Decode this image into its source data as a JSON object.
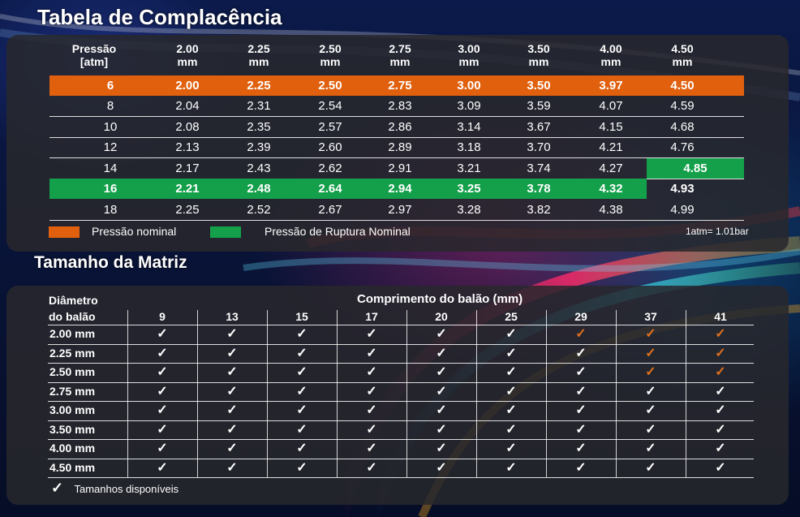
{
  "compliance": {
    "title": "Tabela de Complacência",
    "pressure_header": [
      "Pressão",
      "[atm]"
    ],
    "diameters": [
      {
        "value": "2.00",
        "unit": "mm"
      },
      {
        "value": "2.25",
        "unit": "mm"
      },
      {
        "value": "2.50",
        "unit": "mm"
      },
      {
        "value": "2.75",
        "unit": "mm"
      },
      {
        "value": "3.00",
        "unit": "mm"
      },
      {
        "value": "3.50",
        "unit": "mm"
      },
      {
        "value": "4.00",
        "unit": "mm"
      },
      {
        "value": "4.50",
        "unit": "mm"
      }
    ],
    "rows": [
      {
        "pressure": "6",
        "values": [
          "2.00",
          "2.25",
          "2.50",
          "2.75",
          "3.00",
          "3.50",
          "3.97",
          "4.50"
        ],
        "highlight": "orange",
        "green_cells": []
      },
      {
        "pressure": "8",
        "values": [
          "2.04",
          "2.31",
          "2.54",
          "2.83",
          "3.09",
          "3.59",
          "4.07",
          "4.59"
        ],
        "highlight": "",
        "green_cells": []
      },
      {
        "pressure": "10",
        "values": [
          "2.08",
          "2.35",
          "2.57",
          "2.86",
          "3.14",
          "3.67",
          "4.15",
          "4.68"
        ],
        "highlight": "",
        "green_cells": []
      },
      {
        "pressure": "12",
        "values": [
          "2.13",
          "2.39",
          "2.60",
          "2.89",
          "3.18",
          "3.70",
          "4.21",
          "4.76"
        ],
        "highlight": "",
        "green_cells": []
      },
      {
        "pressure": "14",
        "values": [
          "2.17",
          "2.43",
          "2.62",
          "2.91",
          "3.21",
          "3.74",
          "4.27",
          "4.85"
        ],
        "highlight": "",
        "green_cells": [
          8
        ]
      },
      {
        "pressure": "16",
        "values": [
          "2.21",
          "2.48",
          "2.64",
          "2.94",
          "3.25",
          "3.78",
          "4.32",
          "4.93"
        ],
        "highlight": "green",
        "green_cells": []
      },
      {
        "pressure": "18",
        "values": [
          "2.25",
          "2.52",
          "2.67",
          "2.97",
          "3.28",
          "3.82",
          "4.38",
          "4.99"
        ],
        "highlight": "",
        "green_cells": []
      }
    ],
    "legend": {
      "nominal": "Pressão nominal",
      "rupture": "Pressão de Ruptura Nominal",
      "note": "1atm= 1.01bar"
    },
    "colors": {
      "orange": "#e0600e",
      "green": "#14a04a"
    }
  },
  "matrix": {
    "title": "Tamanho da Matriz",
    "diameter_header": [
      "Diâmetro",
      "do balão"
    ],
    "length_header": "Comprimento do balão (mm)",
    "lengths": [
      "9",
      "13",
      "15",
      "17",
      "20",
      "25",
      "29",
      "37",
      "41"
    ],
    "rows": [
      {
        "label": "2.00 mm",
        "checks": [
          "w",
          "w",
          "w",
          "w",
          "w",
          "w",
          "o",
          "o",
          "o"
        ]
      },
      {
        "label": "2.25 mm",
        "checks": [
          "w",
          "w",
          "w",
          "w",
          "w",
          "w",
          "w",
          "o",
          "o"
        ]
      },
      {
        "label": "2.50 mm",
        "checks": [
          "w",
          "w",
          "w",
          "w",
          "w",
          "w",
          "w",
          "o",
          "o"
        ]
      },
      {
        "label": "2.75 mm",
        "checks": [
          "w",
          "w",
          "w",
          "w",
          "w",
          "w",
          "w",
          "w",
          "w"
        ]
      },
      {
        "label": "3.00 mm",
        "checks": [
          "w",
          "w",
          "w",
          "w",
          "w",
          "w",
          "w",
          "w",
          "w"
        ]
      },
      {
        "label": "3.50 mm",
        "checks": [
          "w",
          "w",
          "w",
          "w",
          "w",
          "w",
          "w",
          "w",
          "w"
        ]
      },
      {
        "label": "4.00 mm",
        "checks": [
          "w",
          "w",
          "w",
          "w",
          "w",
          "w",
          "w",
          "w",
          "w"
        ]
      },
      {
        "label": "4.50 mm",
        "checks": [
          "w",
          "w",
          "w",
          "w",
          "w",
          "w",
          "w",
          "w",
          "w"
        ]
      }
    ],
    "check_symbol": "✓",
    "legend": "Tamanhos disponíveis",
    "colors": {
      "white": "#ffffff",
      "orange": "#e0701e"
    }
  }
}
